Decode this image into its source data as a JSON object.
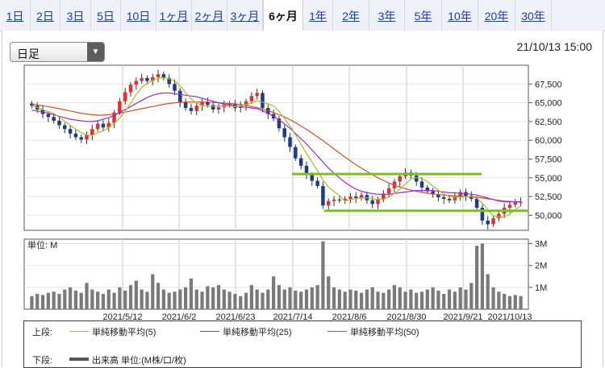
{
  "tabs": [
    {
      "label": "1日",
      "active": false
    },
    {
      "label": "2日",
      "active": false
    },
    {
      "label": "3日",
      "active": false
    },
    {
      "label": "5日",
      "active": false
    },
    {
      "label": "10日",
      "active": false
    },
    {
      "label": "1ヶ月",
      "active": false
    },
    {
      "label": "2ヶ月",
      "active": false
    },
    {
      "label": "3ヶ月",
      "active": false
    },
    {
      "label": "6ヶ月",
      "active": true
    },
    {
      "label": "1年",
      "active": false
    },
    {
      "label": "2年",
      "active": false
    },
    {
      "label": "3年",
      "active": false
    },
    {
      "label": "5年",
      "active": false
    },
    {
      "label": "10年",
      "active": false
    },
    {
      "label": "20年",
      "active": false
    },
    {
      "label": "30年",
      "active": false
    }
  ],
  "dropdown": {
    "value": "日足"
  },
  "timestamp": "21/10/13 15:00",
  "colors": {
    "ma5": "#a5bd2a",
    "ma25": "#9a2cd6",
    "ma50": "#d5502a",
    "up_candle": "#e03030",
    "down_candle": "#1e3a8a",
    "volume": "#7a7a7a",
    "support_line": "#7cbd2e"
  },
  "legend": {
    "upper_label": "上段:",
    "lower_label": "下段:",
    "ma5": "単純移動平均(5)",
    "ma25": "単純移動平均(25)",
    "ma50": "単純移動平均(50)",
    "volume": "出来高 単位:(M株/口/枚)"
  },
  "chart_data": {
    "type": "candlestick",
    "x_labels": [
      "2021/5/12",
      "2021/6/2",
      "2021/6/23",
      "2021/7/14",
      "2021/8/6",
      "2021/8/30",
      "2021/9/21",
      "2021/10/13"
    ],
    "price_axis": {
      "ylim": [
        48000,
        70000
      ],
      "ticks": [
        "67,500",
        "65,000",
        "62,500",
        "60,000",
        "57,500",
        "55,000",
        "52,500",
        "50,000"
      ]
    },
    "volume_axis": {
      "label": "単位: M",
      "ylim": [
        0,
        3.2
      ],
      "ticks": [
        "3M",
        "2M",
        "1M"
      ]
    },
    "horizontal_lines": [
      55500,
      50600
    ],
    "close": [
      64600,
      64100,
      63500,
      63100,
      62600,
      62000,
      61500,
      60900,
      60400,
      60100,
      60700,
      61500,
      62200,
      61700,
      62300,
      63700,
      65200,
      66400,
      67400,
      67900,
      68300,
      67900,
      68400,
      68800,
      68300,
      67500,
      66600,
      65100,
      64300,
      63900,
      64600,
      65100,
      64700,
      64100,
      64400,
      64700,
      64900,
      64300,
      64600,
      65200,
      65900,
      66300,
      64300,
      63500,
      62900,
      61600,
      60400,
      59100,
      57600,
      56600,
      55400,
      54600,
      53900,
      51300,
      51900,
      52100,
      52000,
      52200,
      52500,
      52300,
      52700,
      52000,
      51500,
      52100,
      52900,
      53600,
      54500,
      55200,
      55700,
      55300,
      54500,
      53700,
      53200,
      52800,
      52400,
      52200,
      52000,
      52500,
      53100,
      52600,
      52200,
      51000,
      49300,
      48800,
      49600,
      50200,
      51000,
      51400,
      51700,
      51800
    ],
    "volume": [
      0.6,
      0.7,
      0.65,
      0.75,
      0.8,
      0.7,
      0.9,
      1.0,
      0.85,
      0.75,
      1.2,
      0.9,
      0.8,
      0.7,
      0.9,
      0.75,
      1.0,
      0.85,
      1.1,
      1.3,
      0.9,
      0.8,
      1.6,
      1.2,
      0.9,
      0.75,
      0.8,
      0.9,
      1.0,
      1.4,
      0.9,
      0.8,
      1.05,
      1.0,
      1.1,
      0.9,
      0.8,
      0.7,
      0.6,
      0.75,
      1.1,
      0.9,
      0.75,
      0.9,
      1.5,
      1.1,
      0.9,
      1.0,
      0.85,
      0.8,
      0.9,
      1.0,
      1.1,
      3.1,
      1.5,
      1.0,
      0.9,
      0.8,
      0.9,
      0.85,
      0.75,
      0.9,
      1.0,
      0.8,
      0.75,
      0.9,
      1.1,
      1.0,
      0.8,
      0.9,
      0.75,
      0.8,
      0.9,
      1.0,
      0.85,
      0.7,
      0.9,
      0.8,
      1.0,
      0.9,
      1.2,
      2.9,
      3.0,
      1.6,
      1.0,
      0.8,
      0.7,
      0.6,
      0.65,
      0.6
    ],
    "ma5": [
      64600,
      64350,
      64070,
      63830,
      63580,
      63060,
      62540,
      62000,
      61480,
      61000,
      60720,
      60670,
      60980,
      61240,
      61680,
      62280,
      62940,
      63860,
      64990,
      66120,
      67040,
      67580,
      67980,
      68260,
      68340,
      68200,
      67920,
      67240,
      66360,
      65500,
      64980,
      64650,
      64520,
      64560,
      64580,
      64580,
      64560,
      64480,
      64580,
      64740,
      64990,
      65260,
      65060,
      64860,
      64580,
      63860,
      62940,
      61900,
      60720,
      59460,
      58220,
      57080,
      55940,
      54720,
      53780,
      53160,
      52640,
      51900,
      52100,
      52220,
      52340,
      52340,
      52200,
      52120,
      52160,
      52400,
      52900,
      53460,
      54180,
      54860,
      55040,
      54880,
      54480,
      53900,
      53320,
      52860,
      52520,
      52380,
      52400,
      52480,
      52480,
      52280,
      51640,
      50740,
      49920,
      49780,
      49780,
      50120,
      50780,
      51220
    ],
    "ma25": [
      64000,
      63900,
      63800,
      63600,
      63400,
      63200,
      63000,
      62800,
      62700,
      62600,
      62500,
      62500,
      62600,
      62800,
      63000,
      63300,
      63700,
      64100,
      64500,
      64900,
      65300,
      65700,
      66000,
      66200,
      66300,
      66300,
      66200,
      66100,
      66000,
      65900,
      65800,
      65600,
      65400,
      65200,
      65000,
      64800,
      64700,
      64600,
      64500,
      64400,
      64300,
      64200,
      63900,
      63600,
      63200,
      62700,
      62200,
      61600,
      60900,
      60200,
      59500,
      58700,
      57900,
      57100,
      56300,
      55600,
      55000,
      54400,
      53900,
      53500,
      53200,
      53000,
      52900,
      52800,
      52800,
      52800,
      52900,
      53000,
      53100,
      53200,
      53300,
      53300,
      53300,
      53300,
      53200,
      53100,
      53000,
      53000,
      52900,
      52900,
      52800,
      52700,
      52500,
      52300,
      52100,
      51900,
      51800,
      51800,
      51800,
      51800
    ],
    "ma50": [
      64800,
      64700,
      64600,
      64500,
      64350,
      64200,
      64050,
      63900,
      63750,
      63600,
      63500,
      63400,
      63350,
      63350,
      63400,
      63500,
      63600,
      63750,
      63900,
      64050,
      64200,
      64350,
      64500,
      64650,
      64800,
      64900,
      65000,
      65050,
      65100,
      65100,
      65100,
      65100,
      65100,
      65050,
      65000,
      64950,
      64900,
      64850,
      64750,
      64650,
      64500,
      64350,
      64150,
      63950,
      63700,
      63400,
      63100,
      62750,
      62350,
      61900,
      61450,
      60950,
      60450,
      59950,
      59400,
      58850,
      58300,
      57750,
      57250,
      56750,
      56300,
      55850,
      55400,
      55000,
      54650,
      54300,
      54000,
      53750,
      53550,
      53350,
      53200,
      53050,
      52950,
      52850,
      52750,
      52700,
      52650,
      52600,
      52550,
      52500,
      52450,
      52400,
      52300,
      52200,
      52100,
      52000,
      51900,
      51850,
      51800,
      51750
    ]
  }
}
